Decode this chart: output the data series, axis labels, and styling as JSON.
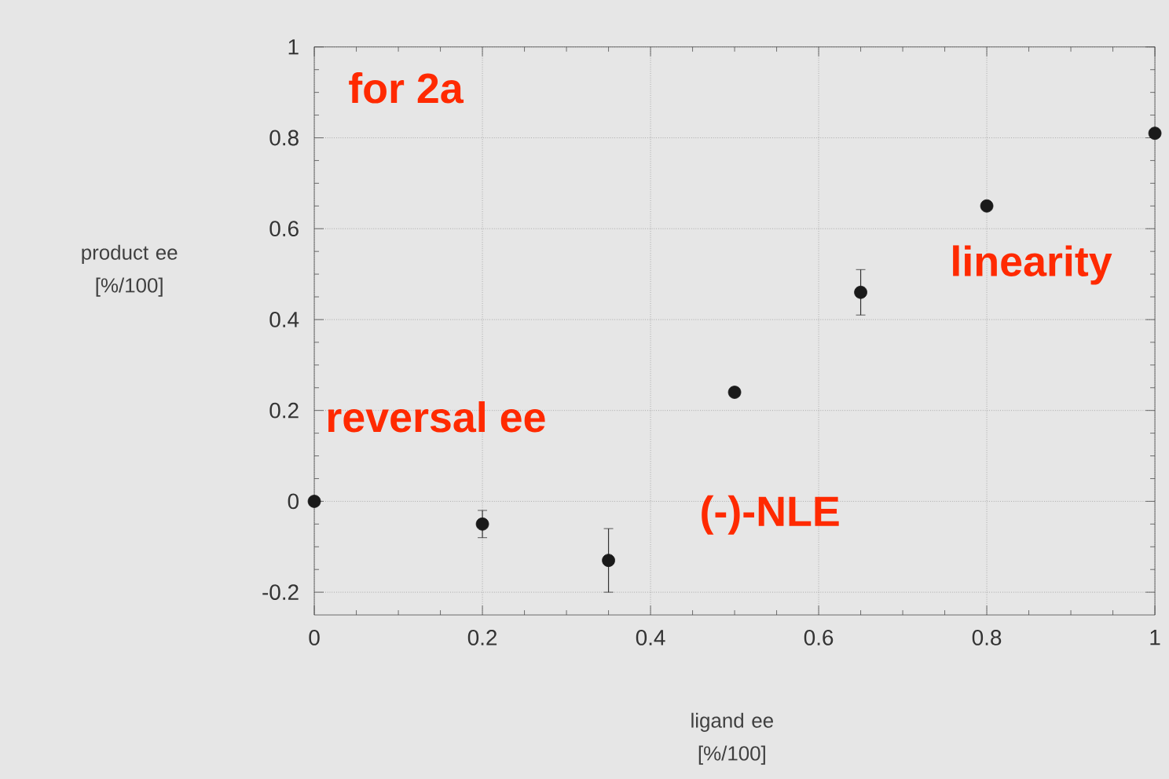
{
  "chart_data": {
    "type": "scatter",
    "xlabel": "ligand ee [%/100]",
    "ylabel": "product ee [%/100]",
    "x": [
      0,
      0.2,
      0.35,
      0.5,
      0.65,
      0.8,
      1
    ],
    "values": [
      0,
      -0.05,
      -0.13,
      0.24,
      0.46,
      0.65,
      0.81
    ],
    "errors": [
      null,
      0.03,
      0.07,
      null,
      0.05,
      null,
      null
    ],
    "color": "#1a1a1a",
    "marker": "circle",
    "xlim": [
      0,
      1
    ],
    "ylim": [
      -0.25,
      1
    ],
    "xticks": [
      0,
      0.2,
      0.4,
      0.6,
      0.8,
      1
    ],
    "yticks": [
      -0.2,
      0,
      0.2,
      0.4,
      0.6,
      0.8,
      1
    ],
    "grid": true,
    "annotations": [
      "for 2a",
      "reversal ee",
      "linearity",
      "(-)-NLE"
    ]
  }
}
